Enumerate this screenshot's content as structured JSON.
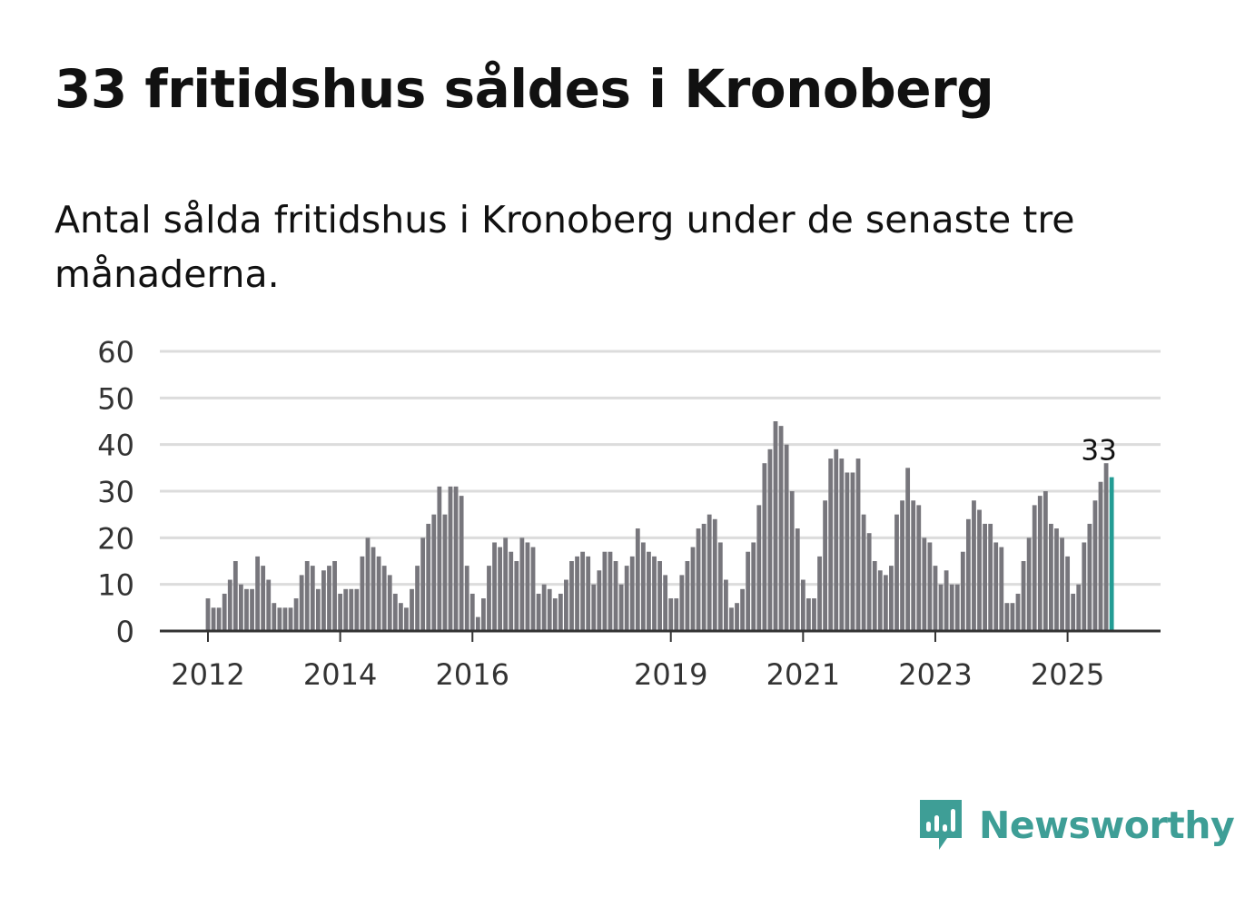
{
  "title": "33 fritidshus såldes i Kronoberg",
  "subtitle": "Antal sålda fritidshus i Kronoberg under de senaste tre månaderna.",
  "brand": {
    "name": "Newsworthy",
    "icon": "newsworthy-logo-icon"
  },
  "colors": {
    "bar": "#77767c",
    "highlight": "#239c94",
    "grid": "#dcdcdc",
    "axis": "#333333",
    "brand": "#3e9e96"
  },
  "chart_data": {
    "type": "bar",
    "title": "",
    "xlabel": "",
    "ylabel": "",
    "ylim": [
      0,
      60
    ],
    "yticks": [
      "0",
      "10",
      "20",
      "30",
      "40",
      "50",
      "60"
    ],
    "xticks": [
      {
        "label": "2012",
        "index": 0
      },
      {
        "label": "2014",
        "index": 24
      },
      {
        "label": "2016",
        "index": 48
      },
      {
        "label": "2019",
        "index": 84
      },
      {
        "label": "2021",
        "index": 108
      },
      {
        "label": "2023",
        "index": 132
      },
      {
        "label": "2025",
        "index": 156
      }
    ],
    "grid": true,
    "first_period": "2012-01",
    "values": [
      7,
      5,
      5,
      8,
      11,
      15,
      10,
      9,
      9,
      16,
      14,
      11,
      6,
      5,
      5,
      5,
      7,
      12,
      15,
      14,
      9,
      13,
      14,
      15,
      8,
      9,
      9,
      9,
      16,
      20,
      18,
      16,
      14,
      12,
      8,
      6,
      5,
      9,
      14,
      20,
      23,
      25,
      31,
      25,
      31,
      31,
      29,
      14,
      8,
      3,
      7,
      14,
      19,
      18,
      20,
      17,
      15,
      20,
      19,
      18,
      8,
      10,
      9,
      7,
      8,
      11,
      15,
      16,
      17,
      16,
      10,
      13,
      17,
      17,
      15,
      10,
      14,
      16,
      22,
      19,
      17,
      16,
      15,
      12,
      7,
      7,
      12,
      15,
      18,
      22,
      23,
      25,
      24,
      19,
      11,
      5,
      6,
      9,
      17,
      19,
      27,
      36,
      39,
      45,
      44,
      40,
      30,
      22,
      11,
      7,
      7,
      16,
      28,
      37,
      39,
      37,
      34,
      34,
      37,
      25,
      21,
      15,
      13,
      12,
      14,
      25,
      28,
      35,
      28,
      27,
      20,
      19,
      14,
      10,
      13,
      10,
      10,
      17,
      24,
      28,
      26,
      23,
      23,
      19,
      18,
      6,
      6,
      8,
      15,
      20,
      27,
      29,
      30,
      23,
      22,
      20,
      16,
      8,
      10,
      19,
      23,
      28,
      32,
      36,
      33
    ],
    "highlight_label": "33"
  }
}
